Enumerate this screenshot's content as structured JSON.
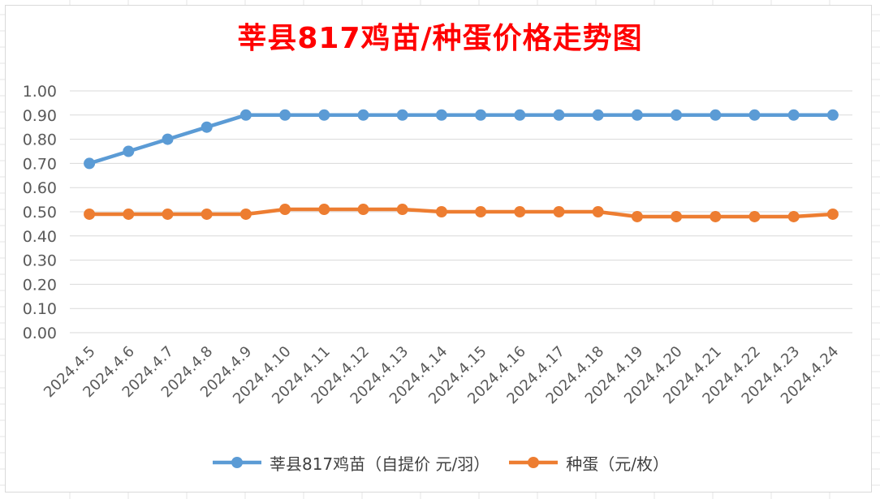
{
  "chart_data": {
    "type": "line",
    "title": "莘县817鸡苗/种蛋价格走势图",
    "categories": [
      "2024.4.5",
      "2024.4.6",
      "2024.4.7",
      "2024.4.8",
      "2024.4.9",
      "2024.4.10",
      "2024.4.11",
      "2024.4.12",
      "2024.4.13",
      "2024.4.14",
      "2024.4.15",
      "2024.4.16",
      "2024.4.17",
      "2024.4.18",
      "2024.4.19",
      "2024.4.20",
      "2024.4.21",
      "2024.4.22",
      "2024.4.23",
      "2024.4.24"
    ],
    "series": [
      {
        "name": "莘县817鸡苗（自提价 元/羽）",
        "color": "#5b9bd5",
        "values": [
          0.7,
          0.75,
          0.8,
          0.85,
          0.9,
          0.9,
          0.9,
          0.9,
          0.9,
          0.9,
          0.9,
          0.9,
          0.9,
          0.9,
          0.9,
          0.9,
          0.9,
          0.9,
          0.9,
          0.9
        ]
      },
      {
        "name": "种蛋（元/枚）",
        "color": "#ed7d31",
        "values": [
          0.49,
          0.49,
          0.49,
          0.49,
          0.49,
          0.51,
          0.51,
          0.51,
          0.51,
          0.5,
          0.5,
          0.5,
          0.5,
          0.5,
          0.48,
          0.48,
          0.48,
          0.48,
          0.48,
          0.49
        ]
      }
    ],
    "ylim": [
      0,
      1.0
    ],
    "yticks": [
      "0.00",
      "0.10",
      "0.20",
      "0.30",
      "0.40",
      "0.50",
      "0.60",
      "0.70",
      "0.80",
      "0.90",
      "1.00"
    ],
    "grid": true,
    "legend_position": "bottom",
    "xlabel": "",
    "ylabel": ""
  }
}
